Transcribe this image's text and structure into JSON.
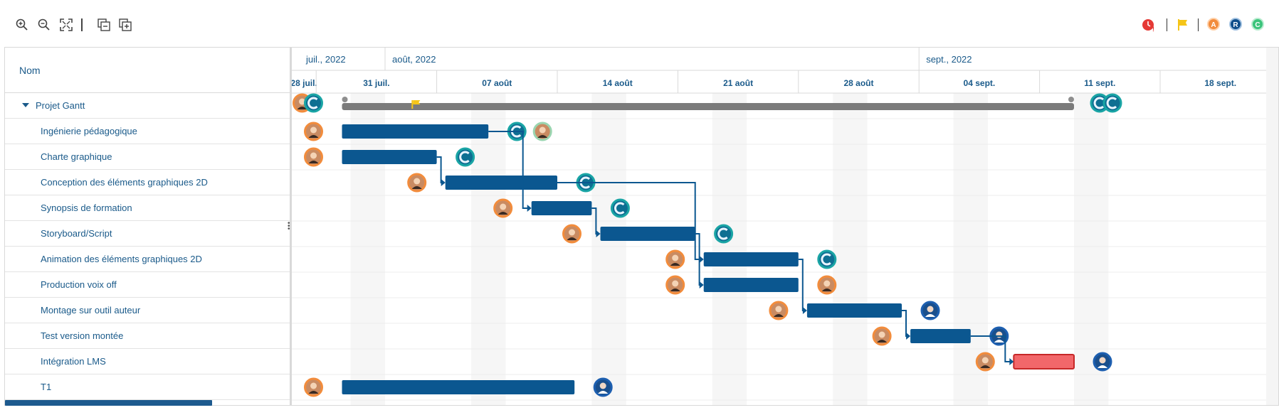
{
  "toolbar": {
    "icons": [
      "zoom-in-icon",
      "zoom-out-icon",
      "fit-screen-icon",
      "collapse-all-icon",
      "expand-all-icon"
    ],
    "legend": [
      "overdue-clock-icon",
      "milestone-flag-icon",
      "A",
      "R",
      "C"
    ]
  },
  "grid": {
    "column_header": "Nom",
    "rows": [
      {
        "label": "Projet Gantt",
        "level": 0
      },
      {
        "label": "Ingénierie pédagogique",
        "level": 1
      },
      {
        "label": "Charte graphique",
        "level": 1
      },
      {
        "label": "Conception des éléments graphiques 2D",
        "level": 1
      },
      {
        "label": "Synopsis de formation",
        "level": 1
      },
      {
        "label": "Storyboard/Script",
        "level": 1
      },
      {
        "label": "Animation des éléments graphiques 2D",
        "level": 1
      },
      {
        "label": "Production voix off",
        "level": 1
      },
      {
        "label": "Montage sur outil auteur",
        "level": 1
      },
      {
        "label": "Test version montée",
        "level": 1
      },
      {
        "label": "Intégration LMS",
        "level": 1
      },
      {
        "label": "T1",
        "level": 1
      }
    ]
  },
  "timeline": {
    "months": [
      "juil., 2022",
      "août, 2022",
      "sept., 2022"
    ],
    "weeks": [
      "28 juil.",
      "31 juil.",
      "07 août",
      "14 août",
      "21 août",
      "28 août",
      "04 sept.",
      "11 sept.",
      "18 sept."
    ]
  },
  "gantt": {
    "day_origin": "2022-07-27",
    "summary": {
      "start": 2.5,
      "end": 45,
      "milestone_day": 6.5
    },
    "tasks": [
      {
        "row": 1,
        "start": 2.5,
        "end": 11
      },
      {
        "row": 2,
        "start": 2.5,
        "end": 8
      },
      {
        "row": 3,
        "start": 8.5,
        "end": 15
      },
      {
        "row": 4,
        "start": 13.5,
        "end": 17
      },
      {
        "row": 5,
        "start": 17.5,
        "end": 23
      },
      {
        "row": 6,
        "start": 23.5,
        "end": 29
      },
      {
        "row": 7,
        "start": 23.5,
        "end": 29
      },
      {
        "row": 8,
        "start": 29.5,
        "end": 35
      },
      {
        "row": 9,
        "start": 35.5,
        "end": 39
      },
      {
        "row": 10,
        "start": 41.5,
        "end": 45,
        "overdue": true
      },
      {
        "row": 11,
        "start": 2.5,
        "end": 16
      }
    ]
  },
  "colors": {
    "accent": "#1a5a8a",
    "bar": "#0b5790",
    "summary_bar": "#7b7b7b",
    "overdue_bar": "#f2676a",
    "weekend": "#f6f6f6",
    "legend_a": "#f28c3c",
    "legend_r": "#0f4e8a",
    "legend_c": "#3bc47b"
  }
}
